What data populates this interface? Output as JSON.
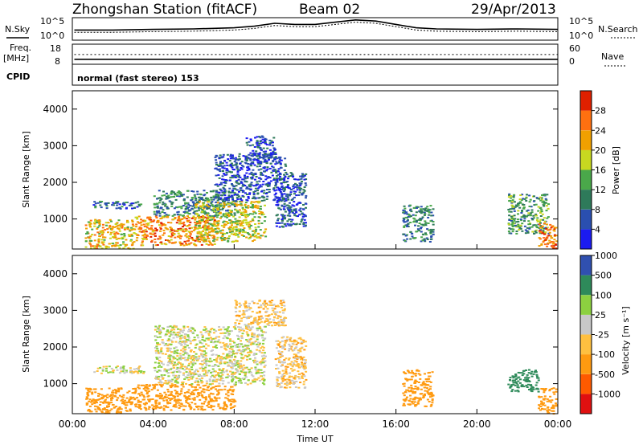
{
  "header": {
    "station": "Zhongshan Station (fitACF)",
    "beam": "Beam 02",
    "date": "29/Apr/2013"
  },
  "panel_labels": {
    "nsky": "N.Sky",
    "nsearch": "N.Search",
    "freq_line1": "Freq.",
    "freq_line2": "[MHz]",
    "nave": "Nave",
    "cpid": "CPID",
    "cpid_value": "normal (fast stereo) 153"
  },
  "noise_axis": {
    "left_ticks": [
      "10^5",
      "10^0"
    ],
    "right_ticks": [
      "10^5",
      "10^0"
    ]
  },
  "freq_axis": {
    "left_ticks": [
      "18",
      "8"
    ],
    "right_ticks": [
      "60",
      "0"
    ]
  },
  "colors": {
    "power_scale": [
      "#1b1bf0",
      "#2a4fb0",
      "#2e7a5a",
      "#4aa84a",
      "#c8d820",
      "#f0a000",
      "#ff7010",
      "#e02000"
    ],
    "velocity_scale": [
      "#e01010",
      "#ff5a00",
      "#ff9a10",
      "#ffc040",
      "#c8c8c8",
      "#8cd040",
      "#2e8a5a",
      "#3050b0"
    ]
  },
  "chart_data": [
    {
      "type": "heatmap",
      "title": "",
      "xlabel": "",
      "ylabel": "Slant Range [km]",
      "x_range_hours": [
        0,
        24
      ],
      "y_range_km": [
        180,
        4500
      ],
      "yticks": [
        "1000",
        "2000",
        "3000",
        "4000"
      ],
      "colorbar_label": "Power [dB]",
      "colorbar_ticks": [
        "4",
        "8",
        "12",
        "16",
        "20",
        "24",
        "28"
      ],
      "colorbar_range": [
        0,
        32
      ],
      "regions": [
        {
          "t0": 0.6,
          "t1": 3.0,
          "r0": 200,
          "r1": 1000,
          "value": 20
        },
        {
          "t0": 1.0,
          "t1": 3.5,
          "r0": 1300,
          "r1": 1500,
          "value": 8
        },
        {
          "t0": 3.0,
          "t1": 7.0,
          "r0": 300,
          "r1": 1100,
          "value": 24
        },
        {
          "t0": 4.0,
          "t1": 8.0,
          "r0": 1100,
          "r1": 1800,
          "value": 10
        },
        {
          "t0": 6.0,
          "t1": 9.5,
          "r0": 400,
          "r1": 1500,
          "value": 18
        },
        {
          "t0": 7.0,
          "t1": 10.5,
          "r0": 1500,
          "r1": 2800,
          "value": 6
        },
        {
          "t0": 8.5,
          "t1": 10.0,
          "r0": 2600,
          "r1": 3300,
          "value": 5
        },
        {
          "t0": 10.0,
          "t1": 11.5,
          "r0": 800,
          "r1": 2300,
          "value": 6
        },
        {
          "t0": 16.3,
          "t1": 17.8,
          "r0": 400,
          "r1": 1400,
          "value": 10
        },
        {
          "t0": 21.5,
          "t1": 23.5,
          "r0": 600,
          "r1": 1700,
          "value": 12
        },
        {
          "t0": 23.0,
          "t1": 23.9,
          "r0": 200,
          "r1": 900,
          "value": 26
        }
      ]
    },
    {
      "type": "heatmap",
      "title": "",
      "xlabel": "Time UT",
      "ylabel": "Slant Range [km]",
      "x_range_hours": [
        0,
        24
      ],
      "y_range_km": [
        180,
        4500
      ],
      "yticks": [
        "1000",
        "2000",
        "3000",
        "4000"
      ],
      "xticks": [
        "00:00",
        "04:00",
        "08:00",
        "12:00",
        "16:00",
        "20:00",
        "00:00"
      ],
      "colorbar_label": "Velocity [m s⁻¹]",
      "colorbar_ticks": [
        "-1000",
        "-500",
        "-100",
        "-25",
        "25",
        "100",
        "500",
        "1000"
      ],
      "colorbar_range": [
        -1200,
        1200
      ],
      "regions": [
        {
          "t0": 0.6,
          "t1": 3.0,
          "r0": 200,
          "r1": 900,
          "value": -300
        },
        {
          "t0": 1.0,
          "t1": 3.5,
          "r0": 1300,
          "r1": 1500,
          "value": 0
        },
        {
          "t0": 3.0,
          "t1": 8.0,
          "r0": 300,
          "r1": 1000,
          "value": -250
        },
        {
          "t0": 4.0,
          "t1": 9.5,
          "r0": 1000,
          "r1": 2600,
          "value": 0
        },
        {
          "t0": 8.0,
          "t1": 10.5,
          "r0": 2600,
          "r1": 3300,
          "value": -60
        },
        {
          "t0": 10.0,
          "t1": 11.5,
          "r0": 900,
          "r1": 2300,
          "value": -60
        },
        {
          "t0": 16.3,
          "t1": 17.8,
          "r0": 400,
          "r1": 1400,
          "value": -300
        },
        {
          "t0": 21.5,
          "t1": 23.0,
          "r0": 800,
          "r1": 1400,
          "value": 300
        },
        {
          "t0": 23.0,
          "t1": 23.9,
          "r0": 200,
          "r1": 900,
          "value": -300
        }
      ]
    },
    {
      "type": "line",
      "title": "",
      "xlabel": "",
      "ylabel": "",
      "x_range_hours": [
        0,
        24
      ],
      "series": [
        {
          "name": "N.Sky",
          "x": [
            0.1,
            2,
            4,
            6,
            8,
            9,
            10,
            11,
            12,
            13,
            14,
            15,
            16,
            17,
            18,
            20,
            22,
            24
          ],
          "y": [
            0.45,
            0.45,
            0.48,
            0.5,
            0.55,
            0.62,
            0.75,
            0.7,
            0.7,
            0.8,
            0.9,
            0.85,
            0.7,
            0.55,
            0.5,
            0.48,
            0.5,
            0.48
          ]
        },
        {
          "name": "N.Search",
          "x": [
            0.1,
            2,
            4,
            6,
            8,
            9,
            10,
            11,
            12,
            13,
            14,
            15,
            16,
            17,
            18,
            20,
            22,
            24
          ],
          "y": [
            0.35,
            0.35,
            0.38,
            0.4,
            0.45,
            0.52,
            0.65,
            0.6,
            0.6,
            0.7,
            0.8,
            0.75,
            0.6,
            0.45,
            0.4,
            0.38,
            0.4,
            0.38
          ]
        }
      ]
    },
    {
      "type": "line",
      "title": "",
      "xlabel": "",
      "ylabel": "",
      "x_range_hours": [
        0,
        24
      ],
      "series": [
        {
          "name": "Freq.",
          "x": [
            0.1,
            24
          ],
          "y": [
            10.5,
            10.5
          ]
        },
        {
          "name": "Nave",
          "x": [
            0.1,
            24
          ],
          "y": [
            29,
            29
          ]
        }
      ]
    }
  ]
}
